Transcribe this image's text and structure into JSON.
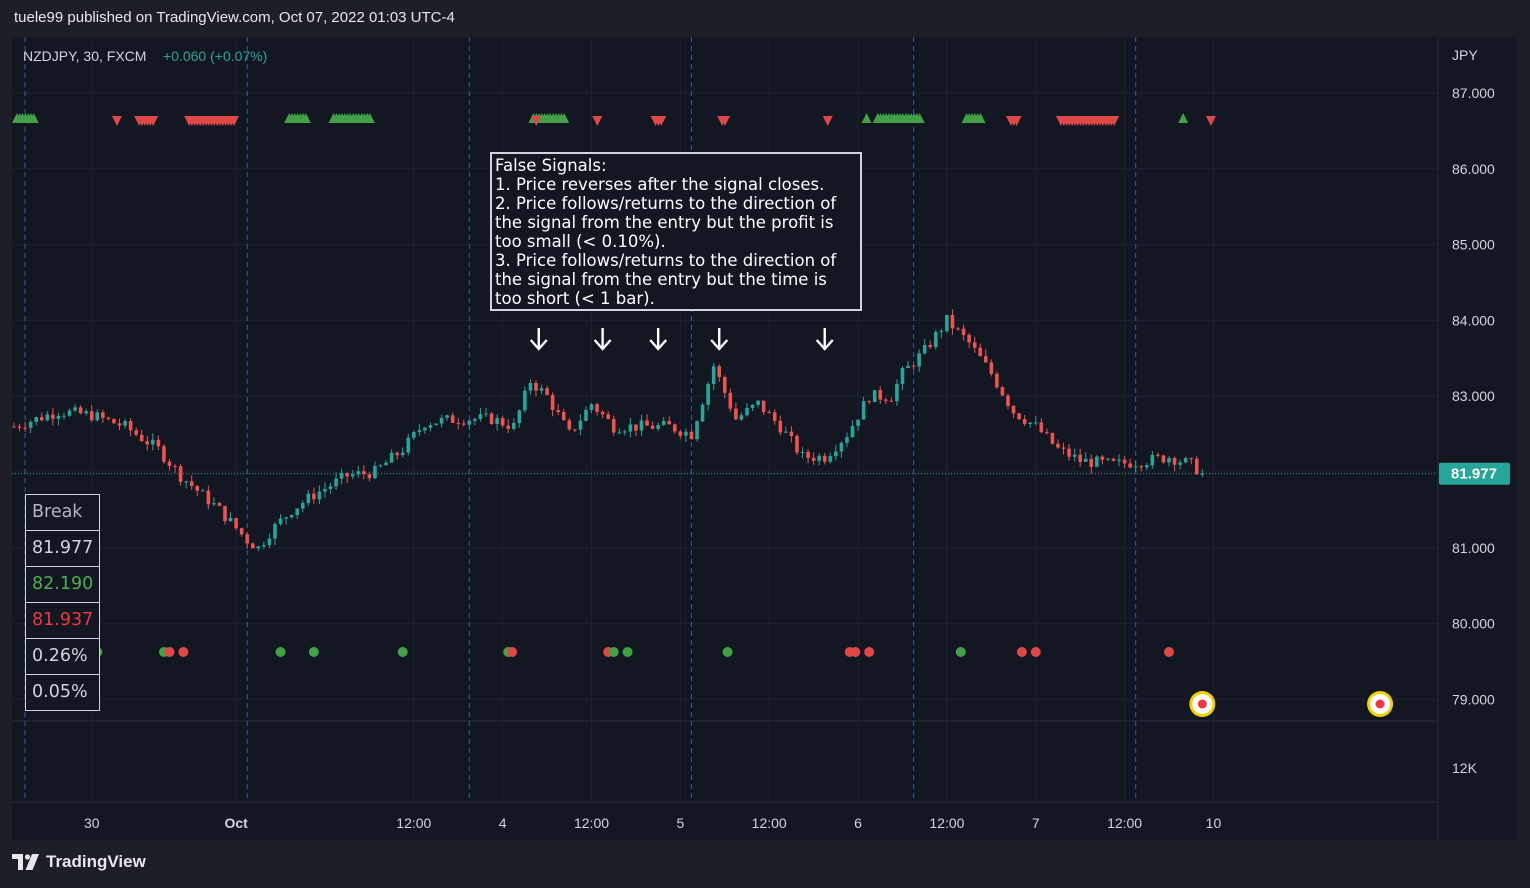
{
  "header": {
    "text": "tuele99 published on TradingView.com, Oct 07, 2022 01:03 UTC-4"
  },
  "legend": {
    "symbol": "NZDJPY, 30, FXCM",
    "change": "+0.060 (+0.07%)"
  },
  "price_axis": {
    "currency": "JPY",
    "ticks": [
      "87.000",
      "86.000",
      "85.000",
      "84.000",
      "83.000",
      "82.000",
      "81.000",
      "80.000",
      "79.000"
    ],
    "volume_label": "12K"
  },
  "last_price": {
    "label": "81.977",
    "value": 81.977
  },
  "time_axis": {
    "ticks": [
      "30",
      "Oct",
      "12:00",
      "4",
      "12:00",
      "5",
      "12:00",
      "6",
      "12:00",
      "7",
      "12:00",
      "10"
    ]
  },
  "annotation": {
    "lines": [
      "False Signals:",
      "1. Price reverses after the signal closes.",
      "2. Price follows/returns to the direction of",
      "the signal from the entry but the profit is",
      "too small (< 0.10%).",
      "3. Price follows/returns to the direction of",
      "the signal from the entry but the time is",
      "too short (< 1 bar)."
    ]
  },
  "stat_box": {
    "rows": [
      {
        "text": "Break",
        "color": "#b2b5be"
      },
      {
        "text": "81.977",
        "color": "#d1d4dc"
      },
      {
        "text": "82.190",
        "color": "#4caf50"
      },
      {
        "text": "81.937",
        "color": "#f23645"
      },
      {
        "text": "0.26%",
        "color": "#d1d4dc"
      },
      {
        "text": "0.05%",
        "color": "#d1d4dc"
      }
    ]
  },
  "footer": {
    "brand": "TradingView"
  },
  "colors": {
    "up": "#26a69a",
    "down": "#ef5350",
    "green_marker": "#43a047",
    "red_marker": "#e04848",
    "last_price_bg": "#26a69a"
  },
  "chart_data": {
    "type": "candlestick",
    "symbol": "NZDJPY",
    "timeframe": "30",
    "ylim": [
      78.3,
      87.6
    ],
    "y_ticks": [
      79,
      80,
      81,
      82,
      83,
      84,
      85,
      86,
      87
    ],
    "close_path": [
      [
        0,
        82.6
      ],
      [
        8,
        82.8
      ],
      [
        14,
        82.75
      ],
      [
        20,
        82.6
      ],
      [
        26,
        82.3
      ],
      [
        30,
        81.95
      ],
      [
        37,
        81.5
      ],
      [
        42,
        81.1
      ],
      [
        44,
        81.0
      ],
      [
        46,
        81.2
      ],
      [
        50,
        81.5
      ],
      [
        54,
        81.7
      ],
      [
        60,
        81.95
      ],
      [
        65,
        82.0
      ],
      [
        70,
        82.3
      ],
      [
        74,
        82.65
      ],
      [
        80,
        82.7
      ],
      [
        86,
        82.7
      ],
      [
        90,
        82.6
      ],
      [
        93,
        83.2
      ],
      [
        96,
        83.0
      ],
      [
        100,
        82.5
      ],
      [
        104,
        82.9
      ],
      [
        108,
        82.6
      ],
      [
        112,
        82.6
      ],
      [
        118,
        82.6
      ],
      [
        122,
        82.5
      ],
      [
        126,
        83.4
      ],
      [
        130,
        82.7
      ],
      [
        134,
        82.9
      ],
      [
        138,
        82.6
      ],
      [
        142,
        82.2
      ],
      [
        146,
        82.2
      ],
      [
        150,
        82.5
      ],
      [
        154,
        83.0
      ],
      [
        158,
        83.0
      ],
      [
        160,
        83.3
      ],
      [
        164,
        83.6
      ],
      [
        168,
        84.0
      ],
      [
        172,
        83.7
      ],
      [
        176,
        83.3
      ],
      [
        180,
        82.8
      ],
      [
        184,
        82.6
      ],
      [
        188,
        82.3
      ],
      [
        192,
        82.15
      ],
      [
        198,
        82.1
      ],
      [
        204,
        82.15
      ],
      [
        208,
        82.2
      ],
      [
        212,
        82.1
      ],
      [
        214,
        81.98
      ]
    ],
    "x_tick_positions": [
      14,
      40,
      72,
      88,
      104,
      120,
      136,
      152,
      168,
      184,
      200,
      216
    ],
    "session_lines": [
      2,
      42,
      82,
      122,
      162,
      202
    ],
    "signal_arrows": [
      {
        "x": 0,
        "dir": "up",
        "count": 7
      },
      {
        "x": 18,
        "dir": "down",
        "count": 1
      },
      {
        "x": 22,
        "dir": "down",
        "count": 6
      },
      {
        "x": 31,
        "dir": "down",
        "count": 17
      },
      {
        "x": 49,
        "dir": "up",
        "count": 7
      },
      {
        "x": 57,
        "dir": "up",
        "count": 14
      },
      {
        "x": 93,
        "dir": "up",
        "count": 12
      },
      {
        "x": 93.5,
        "dir": "down",
        "count": 1
      },
      {
        "x": 104.5,
        "dir": "down",
        "count": 1
      },
      {
        "x": 115,
        "dir": "down",
        "count": 3
      },
      {
        "x": 127,
        "dir": "down",
        "count": 2
      },
      {
        "x": 146,
        "dir": "down",
        "count": 1
      },
      {
        "x": 153,
        "dir": "up",
        "count": 1
      },
      {
        "x": 155,
        "dir": "up",
        "count": 16
      },
      {
        "x": 171,
        "dir": "up",
        "count": 6
      },
      {
        "x": 179,
        "dir": "down",
        "count": 3
      },
      {
        "x": 188,
        "dir": "down",
        "count": 20
      },
      {
        "x": 210,
        "dir": "up",
        "count": 1
      },
      {
        "x": 215,
        "dir": "down",
        "count": 1
      }
    ],
    "false_signal_marks": [
      94.5,
      106,
      116,
      127,
      146
    ],
    "dots": [
      {
        "x": 15,
        "c": "g"
      },
      {
        "x": 27,
        "c": "g"
      },
      {
        "x": 28,
        "c": "r"
      },
      {
        "x": 30.5,
        "c": "r"
      },
      {
        "x": 48,
        "c": "g"
      },
      {
        "x": 54,
        "c": "g"
      },
      {
        "x": 70,
        "c": "g"
      },
      {
        "x": 89,
        "c": "g"
      },
      {
        "x": 89.7,
        "c": "r"
      },
      {
        "x": 107,
        "c": "r"
      },
      {
        "x": 108,
        "c": "g"
      },
      {
        "x": 110.5,
        "c": "g"
      },
      {
        "x": 128.5,
        "c": "g"
      },
      {
        "x": 150.5,
        "c": "r"
      },
      {
        "x": 151.5,
        "c": "r"
      },
      {
        "x": 154,
        "c": "r"
      },
      {
        "x": 170.5,
        "c": "g"
      },
      {
        "x": 181.5,
        "c": "r"
      },
      {
        "x": 184,
        "c": "r"
      },
      {
        "x": 208,
        "c": "r"
      }
    ],
    "event_markers": [
      214,
      246
    ]
  }
}
